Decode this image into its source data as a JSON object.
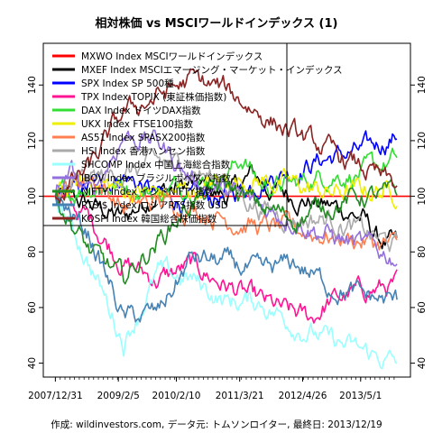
{
  "chart_data": {
    "type": "line",
    "title": "相対株価 vs MSCIワールドインデックス (1)",
    "footer": "作成: wildinvestors.com, データ元: トムソンロイター, 最終日: 2013/12/19",
    "x_start": "2007-12-31",
    "x_end": "2013-12-19",
    "xlim": [
      "2007-10-15",
      "2014-03-15"
    ],
    "ylim": [
      35,
      155
    ],
    "y_ticks": [
      40,
      60,
      80,
      100,
      120,
      140
    ],
    "x_ticks": [
      {
        "date": "2007-12-31",
        "label": "2007/12/31"
      },
      {
        "date": "2009-02-05",
        "label": "2009/2/5"
      },
      {
        "date": "2010-02-10",
        "label": "2010/2/10"
      },
      {
        "date": "2011-03-21",
        "label": "2011/3/21"
      },
      {
        "date": "2012-04-26",
        "label": "2012/4/26"
      },
      {
        "date": "2013-05-01",
        "label": "2013/5/1"
      }
    ],
    "reference_line": 100,
    "series": [
      {
        "name": "MXWO Index MSCIワールドインデックス",
        "color": "#ff0000",
        "values": [
          [
            0,
            100
          ],
          [
            1,
            100
          ]
        ]
      },
      {
        "name": "MXEF Index MSCIエマージング・マーケット・インデックス",
        "color": "#000000",
        "values": [
          [
            0,
            100
          ],
          [
            0.1,
            97
          ],
          [
            0.2,
            92
          ],
          [
            0.3,
            102
          ],
          [
            0.4,
            104
          ],
          [
            0.5,
            100
          ],
          [
            0.58,
            108
          ],
          [
            0.62,
            103
          ],
          [
            0.7,
            100
          ],
          [
            0.78,
            97
          ],
          [
            0.85,
            95
          ],
          [
            0.9,
            92
          ],
          [
            0.95,
            84
          ],
          [
            1,
            82
          ]
        ]
      },
      {
        "name": "SPX Index SP 500種",
        "color": "#0000ff",
        "values": [
          [
            0,
            100
          ],
          [
            0.1,
            103
          ],
          [
            0.2,
            108
          ],
          [
            0.3,
            100
          ],
          [
            0.4,
            98
          ],
          [
            0.5,
            100
          ],
          [
            0.6,
            106
          ],
          [
            0.7,
            110
          ],
          [
            0.8,
            114
          ],
          [
            0.9,
            116
          ],
          [
            1,
            122
          ]
        ]
      },
      {
        "name": "TPX Index TOPIX (東証株価指数)",
        "color": "#ff1493",
        "values": [
          [
            0,
            100
          ],
          [
            0.1,
            92
          ],
          [
            0.2,
            76
          ],
          [
            0.3,
            70
          ],
          [
            0.4,
            75
          ],
          [
            0.5,
            68
          ],
          [
            0.6,
            62
          ],
          [
            0.68,
            58
          ],
          [
            0.75,
            56
          ],
          [
            0.8,
            62
          ],
          [
            0.9,
            66
          ],
          [
            1,
            68
          ]
        ]
      },
      {
        "name": "DAX Index ドイツDAX指数",
        "color": "#33dd33",
        "values": [
          [
            0,
            100
          ],
          [
            0.1,
            104
          ],
          [
            0.2,
            104
          ],
          [
            0.3,
            101
          ],
          [
            0.4,
            105
          ],
          [
            0.5,
            108
          ],
          [
            0.55,
            114
          ],
          [
            0.6,
            104
          ],
          [
            0.7,
            104
          ],
          [
            0.8,
            108
          ],
          [
            0.9,
            108
          ],
          [
            1,
            113
          ]
        ]
      },
      {
        "name": "UKX Index FTSE100指数",
        "color": "#eeee00",
        "values": [
          [
            0,
            100
          ],
          [
            0.1,
            106
          ],
          [
            0.2,
            102
          ],
          [
            0.3,
            101
          ],
          [
            0.4,
            102
          ],
          [
            0.5,
            106
          ],
          [
            0.6,
            106
          ],
          [
            0.7,
            104
          ],
          [
            0.8,
            101
          ],
          [
            0.9,
            102
          ],
          [
            1,
            102
          ]
        ]
      },
      {
        "name": "AS51 Index SPASX200指数",
        "color": "#ff7f50",
        "values": [
          [
            0,
            100
          ],
          [
            0.1,
            108
          ],
          [
            0.2,
            96
          ],
          [
            0.3,
            98
          ],
          [
            0.4,
            96
          ],
          [
            0.5,
            92
          ],
          [
            0.6,
            89
          ],
          [
            0.7,
            88
          ],
          [
            0.8,
            86
          ],
          [
            0.9,
            84
          ],
          [
            1,
            82
          ]
        ]
      },
      {
        "name": "HSI Index 香港ハンセン指数",
        "color": "#aaaaaa",
        "values": [
          [
            0,
            100
          ],
          [
            0.1,
            106
          ],
          [
            0.2,
            108
          ],
          [
            0.3,
            112
          ],
          [
            0.4,
            110
          ],
          [
            0.5,
            104
          ],
          [
            0.6,
            96
          ],
          [
            0.7,
            92
          ],
          [
            0.8,
            92
          ],
          [
            0.9,
            87
          ],
          [
            1,
            82
          ]
        ]
      },
      {
        "name": "SHCOMP Index 中国上海総合指数",
        "color": "#99ffff",
        "values": [
          [
            0,
            100
          ],
          [
            0.1,
            76
          ],
          [
            0.2,
            48
          ],
          [
            0.3,
            72
          ],
          [
            0.4,
            70
          ],
          [
            0.5,
            62
          ],
          [
            0.6,
            62
          ],
          [
            0.7,
            54
          ],
          [
            0.8,
            48
          ],
          [
            0.9,
            44
          ],
          [
            1,
            40
          ]
        ]
      },
      {
        "name": "IBOV Index ブラジルボベスパ指数",
        "color": "#9370db",
        "values": [
          [
            0,
            100
          ],
          [
            0.05,
            108
          ],
          [
            0.1,
            100
          ],
          [
            0.2,
            122
          ],
          [
            0.3,
            120
          ],
          [
            0.4,
            106
          ],
          [
            0.5,
            102
          ],
          [
            0.6,
            96
          ],
          [
            0.7,
            92
          ],
          [
            0.8,
            86
          ],
          [
            0.9,
            82
          ],
          [
            1,
            78
          ]
        ]
      },
      {
        "name": "NIFTY Index インドNIFTY指数",
        "color": "#228b22",
        "values": [
          [
            0,
            100
          ],
          [
            0.1,
            80
          ],
          [
            0.2,
            70
          ],
          [
            0.3,
            84
          ],
          [
            0.4,
            98
          ],
          [
            0.5,
            104
          ],
          [
            0.6,
            96
          ],
          [
            0.7,
            92
          ],
          [
            0.8,
            97
          ],
          [
            0.9,
            100
          ],
          [
            1,
            100
          ]
        ]
      },
      {
        "name": "RTSI$ Index ロシアRTS指数 USD",
        "color": "#4682b4",
        "values": [
          [
            0,
            100
          ],
          [
            0.1,
            86
          ],
          [
            0.2,
            56
          ],
          [
            0.3,
            58
          ],
          [
            0.4,
            78
          ],
          [
            0.5,
            76
          ],
          [
            0.6,
            72
          ],
          [
            0.7,
            76
          ],
          [
            0.8,
            68
          ],
          [
            0.9,
            64
          ],
          [
            1,
            62
          ]
        ]
      },
      {
        "name": "KOSPI Index 韓国総合株価指数",
        "color": "#8b2323",
        "values": [
          [
            0,
            100
          ],
          [
            0.1,
            110
          ],
          [
            0.2,
            130
          ],
          [
            0.3,
            136
          ],
          [
            0.4,
            142
          ],
          [
            0.5,
            138
          ],
          [
            0.6,
            130
          ],
          [
            0.7,
            122
          ],
          [
            0.8,
            116
          ],
          [
            0.9,
            110
          ],
          [
            1,
            103
          ]
        ]
      }
    ]
  }
}
